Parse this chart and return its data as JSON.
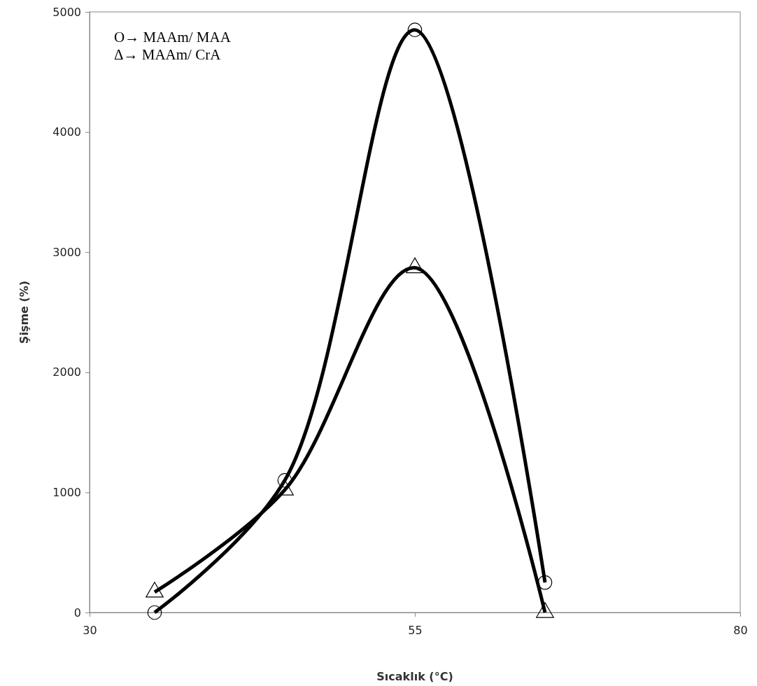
{
  "chart_data": {
    "type": "line",
    "xlabel": "Sıcaklık (°C)",
    "ylabel": "Şişme (%)",
    "x": [
      35,
      45,
      55,
      65
    ],
    "series": [
      {
        "color": "#000000",
        "marker": "circle",
        "values": [
          0,
          1100,
          4850,
          250
        ]
      },
      {
        "color": "#000000",
        "marker": "triangle",
        "values": [
          170,
          1020,
          2870,
          0
        ]
      }
    ],
    "xlim": [
      30,
      80
    ],
    "xticks": [
      30,
      55,
      80
    ],
    "ylim": [
      0,
      5000
    ],
    "yticks": [
      0,
      1000,
      2000,
      3000,
      4000,
      5000
    ],
    "annotations": [
      "O→ MAAm/ MAA",
      "Δ→ MAAm/ CrA"
    ],
    "grid": false,
    "line_style": "solid"
  }
}
